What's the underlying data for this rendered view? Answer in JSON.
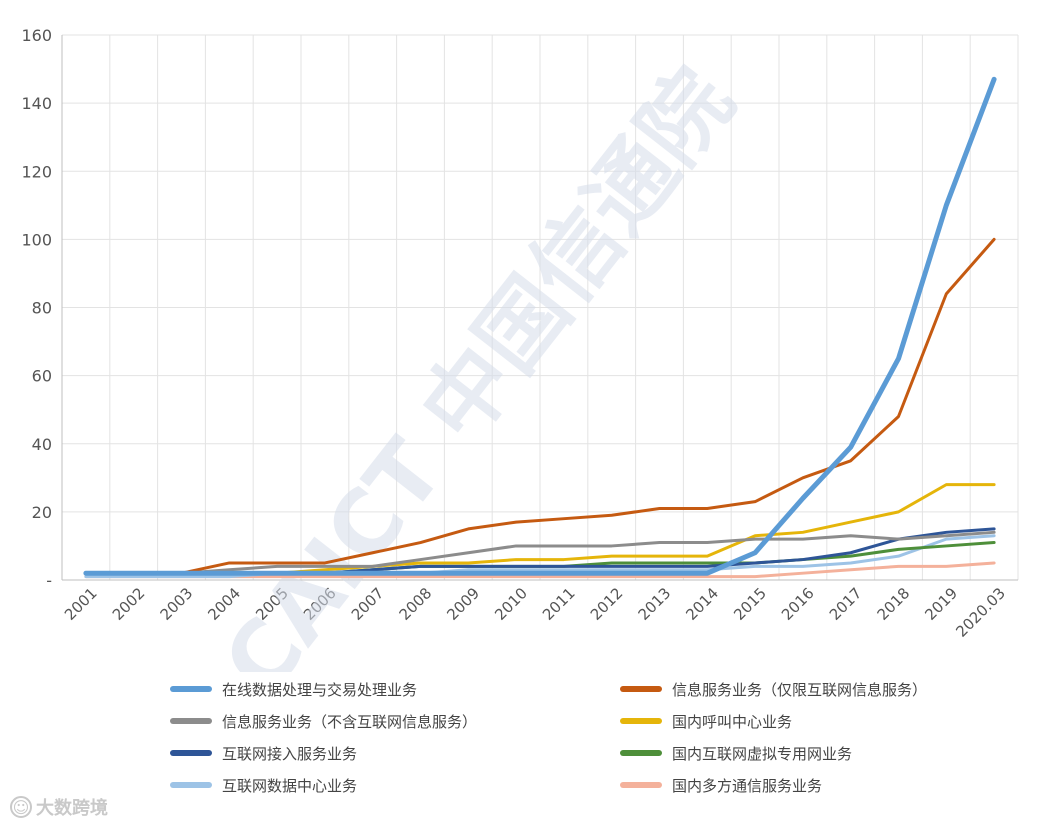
{
  "chart_data": {
    "type": "line",
    "title": "",
    "xlabel": "",
    "ylabel": "",
    "ylim": [
      0,
      160
    ],
    "yticks": [
      0,
      20,
      40,
      60,
      80,
      100,
      120,
      140,
      160
    ],
    "ytick_labels": [
      "-",
      "20",
      "40",
      "60",
      "80",
      "100",
      "120",
      "140",
      "160"
    ],
    "categories": [
      "2001",
      "2002",
      "2003",
      "2004",
      "2005",
      "2006",
      "2007",
      "2008",
      "2009",
      "2010",
      "2011",
      "2012",
      "2013",
      "2014",
      "2015",
      "2016",
      "2017",
      "2018",
      "2019",
      "2020.03"
    ],
    "grid": true,
    "legend_position": "bottom",
    "series": [
      {
        "name": "在线数据处理与交易处理业务",
        "color": "#5b9bd5",
        "width": 5,
        "values": [
          2,
          2,
          2,
          2,
          2,
          2,
          2,
          2,
          2,
          2,
          2,
          2,
          2,
          2,
          8,
          24,
          39,
          65,
          110,
          147
        ]
      },
      {
        "name": "信息服务业务（仅限互联网信息服务）",
        "color": "#c55a11",
        "width": 3,
        "values": [
          2,
          2,
          2,
          5,
          5,
          5,
          8,
          11,
          15,
          17,
          18,
          19,
          21,
          21,
          23,
          30,
          35,
          48,
          84,
          100
        ]
      },
      {
        "name": "信息服务业务（不含互联网信息服务）",
        "color": "#8c8c8c",
        "width": 3,
        "values": [
          2,
          2,
          2,
          3,
          4,
          4,
          4,
          6,
          8,
          10,
          10,
          10,
          11,
          11,
          12,
          12,
          13,
          12,
          13,
          14
        ]
      },
      {
        "name": "国内呼叫中心业务",
        "color": "#e5b50a",
        "width": 3,
        "values": [
          2,
          2,
          2,
          2,
          2,
          3,
          4,
          5,
          5,
          6,
          6,
          7,
          7,
          7,
          13,
          14,
          17,
          20,
          28,
          28
        ]
      },
      {
        "name": "互联网接入服务业务",
        "color": "#2e5597",
        "width": 3,
        "values": [
          2,
          2,
          2,
          2,
          2,
          2,
          3,
          4,
          4,
          4,
          4,
          4,
          4,
          4,
          5,
          6,
          8,
          12,
          14,
          15
        ]
      },
      {
        "name": "国内互联网虚拟专用网业务",
        "color": "#4e8f3a",
        "width": 3,
        "values": [
          2,
          2,
          2,
          2,
          2,
          2,
          3,
          4,
          4,
          4,
          4,
          5,
          5,
          5,
          5,
          6,
          7,
          9,
          10,
          11
        ]
      },
      {
        "name": "互联网数据中心业务",
        "color": "#9dc3e6",
        "width": 3,
        "values": [
          1,
          1,
          1,
          1,
          2,
          2,
          2,
          2,
          3,
          3,
          3,
          3,
          3,
          3,
          4,
          4,
          5,
          7,
          12,
          13
        ]
      },
      {
        "name": "国内多方通信服务业务",
        "color": "#f4b19b",
        "width": 3,
        "values": [
          1,
          1,
          1,
          1,
          1,
          1,
          1,
          1,
          1,
          1,
          1,
          1,
          1,
          1,
          1,
          2,
          3,
          4,
          4,
          5
        ]
      }
    ]
  },
  "overlay_watermark": {
    "text": "CAICT 中国信通院",
    "color": "#d6dde9"
  },
  "footer_watermark": {
    "icon": "logo-icon",
    "icon_glyph": "☺",
    "text": "大数跨境"
  }
}
